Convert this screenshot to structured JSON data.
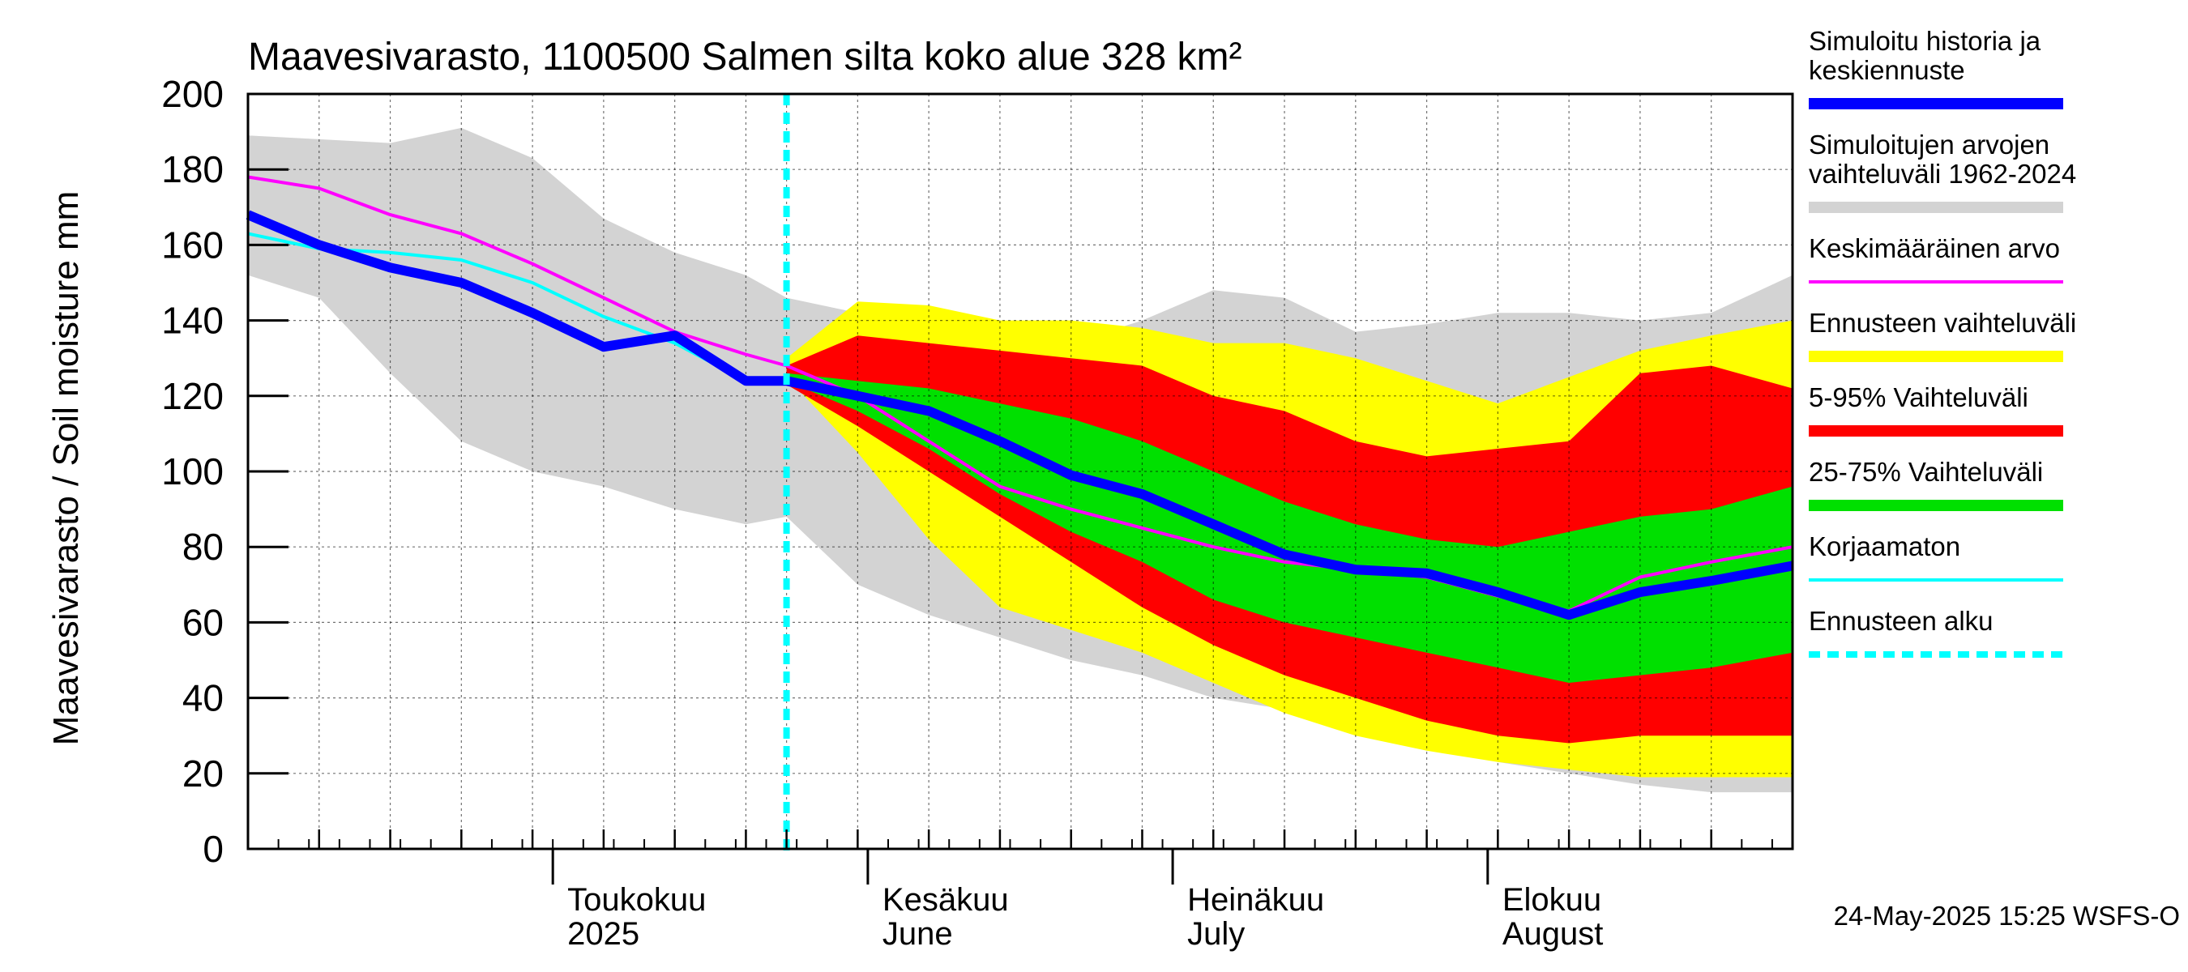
{
  "chart_data": {
    "type": "area",
    "title": "Maavesivarasto, 1100500 Salmen silta koko alue 328 km²",
    "ylabel": "Maavesivarasto / Soil moisture   mm",
    "ylim": [
      0,
      200
    ],
    "yticks": [
      0,
      20,
      40,
      60,
      80,
      100,
      120,
      140,
      160,
      180,
      200
    ],
    "xlim": [
      "2025-04-01",
      "2025-08-31"
    ],
    "x_dates": [
      "2025-04-01",
      "2025-04-08",
      "2025-04-15",
      "2025-04-22",
      "2025-04-29",
      "2025-05-06",
      "2025-05-13",
      "2025-05-20",
      "2025-05-24",
      "2025-05-31",
      "2025-06-07",
      "2025-06-14",
      "2025-06-21",
      "2025-06-28",
      "2025-07-05",
      "2025-07-12",
      "2025-07-19",
      "2025-07-26",
      "2025-08-02",
      "2025-08-09",
      "2025-08-16",
      "2025-08-23",
      "2025-08-31"
    ],
    "month_labels": [
      {
        "fi": "Toukokuu",
        "en": "2025",
        "date": "2025-05-01"
      },
      {
        "fi": "Kesäkuu",
        "en": "June",
        "date": "2025-06-01"
      },
      {
        "fi": "Heinäkuu",
        "en": "July",
        "date": "2025-07-01"
      },
      {
        "fi": "Elokuu",
        "en": "August",
        "date": "2025-08-01"
      }
    ],
    "forecast_start": "2025-05-24",
    "series": [
      {
        "name": "Simuloitujen arvojen vaihteluväli 1962-2024",
        "kind": "band",
        "color": "#d3d3d3",
        "x": [
          "2025-04-01",
          "2025-04-08",
          "2025-04-15",
          "2025-04-22",
          "2025-04-29",
          "2025-05-06",
          "2025-05-13",
          "2025-05-20",
          "2025-05-24",
          "2025-05-31",
          "2025-06-07",
          "2025-06-14",
          "2025-06-21",
          "2025-06-28",
          "2025-07-05",
          "2025-07-12",
          "2025-07-19",
          "2025-07-26",
          "2025-08-02",
          "2025-08-09",
          "2025-08-16",
          "2025-08-23",
          "2025-08-31"
        ],
        "upper": [
          189,
          188,
          187,
          191,
          183,
          167,
          158,
          152,
          146,
          142,
          142,
          138,
          134,
          140,
          148,
          146,
          137,
          139,
          142,
          142,
          140,
          142,
          152
        ],
        "lower": [
          152,
          146,
          126,
          108,
          100,
          96,
          90,
          86,
          88,
          70,
          62,
          56,
          50,
          46,
          40,
          37,
          32,
          27,
          23,
          20,
          17,
          15,
          15
        ]
      },
      {
        "name": "Ennusteen vaihteluväli",
        "kind": "band",
        "color": "#ffff00",
        "x": [
          "2025-05-24",
          "2025-05-31",
          "2025-06-07",
          "2025-06-14",
          "2025-06-21",
          "2025-06-28",
          "2025-07-05",
          "2025-07-12",
          "2025-07-19",
          "2025-07-26",
          "2025-08-02",
          "2025-08-09",
          "2025-08-16",
          "2025-08-23",
          "2025-08-31"
        ],
        "upper": [
          130,
          145,
          144,
          140,
          140,
          138,
          134,
          134,
          130,
          124,
          118,
          125,
          132,
          136,
          140
        ],
        "lower": [
          125,
          105,
          82,
          64,
          58,
          52,
          44,
          36,
          30,
          26,
          23,
          21,
          19,
          19,
          19
        ]
      },
      {
        "name": "5-95% Vaihteluväli",
        "kind": "band",
        "color": "#ff0000",
        "x": [
          "2025-05-24",
          "2025-05-31",
          "2025-06-07",
          "2025-06-14",
          "2025-06-21",
          "2025-06-28",
          "2025-07-05",
          "2025-07-12",
          "2025-07-19",
          "2025-07-26",
          "2025-08-02",
          "2025-08-09",
          "2025-08-16",
          "2025-08-23",
          "2025-08-31"
        ],
        "upper": [
          128,
          136,
          134,
          132,
          130,
          128,
          120,
          116,
          108,
          104,
          106,
          108,
          126,
          128,
          122
        ],
        "lower": [
          123,
          112,
          100,
          88,
          76,
          64,
          54,
          46,
          40,
          34,
          30,
          28,
          30,
          30,
          30
        ]
      },
      {
        "name": "25-75% Vaihteluväli",
        "kind": "band",
        "color": "#00e000",
        "x": [
          "2025-05-24",
          "2025-05-31",
          "2025-06-07",
          "2025-06-14",
          "2025-06-21",
          "2025-06-28",
          "2025-07-05",
          "2025-07-12",
          "2025-07-19",
          "2025-07-26",
          "2025-08-02",
          "2025-08-09",
          "2025-08-16",
          "2025-08-23",
          "2025-08-31"
        ],
        "upper": [
          126,
          124,
          122,
          118,
          114,
          108,
          100,
          92,
          86,
          82,
          80,
          84,
          88,
          90,
          96
        ],
        "lower": [
          124,
          116,
          106,
          94,
          84,
          76,
          66,
          60,
          56,
          52,
          48,
          44,
          46,
          48,
          52
        ]
      },
      {
        "name": "Keskimääräinen arvo",
        "kind": "line",
        "color": "#ff00ff",
        "x": [
          "2025-04-01",
          "2025-04-08",
          "2025-04-15",
          "2025-04-22",
          "2025-04-29",
          "2025-05-06",
          "2025-05-13",
          "2025-05-20",
          "2025-05-24",
          "2025-05-31",
          "2025-06-07",
          "2025-06-14",
          "2025-06-21",
          "2025-06-28",
          "2025-07-05",
          "2025-07-12",
          "2025-07-19",
          "2025-07-26",
          "2025-08-02",
          "2025-08-09",
          "2025-08-16",
          "2025-08-23",
          "2025-08-31"
        ],
        "values": [
          178,
          175,
          168,
          163,
          155,
          146,
          137,
          131,
          128,
          120,
          108,
          96,
          90,
          85,
          80,
          76,
          74,
          72,
          67,
          63,
          72,
          76,
          80
        ]
      },
      {
        "name": "Korjaamaton",
        "kind": "line",
        "color": "#00ffff",
        "x": [
          "2025-04-01",
          "2025-04-08",
          "2025-04-15",
          "2025-04-22",
          "2025-04-29",
          "2025-05-06",
          "2025-05-13",
          "2025-05-20",
          "2025-05-24"
        ],
        "values": [
          163,
          159,
          158,
          156,
          150,
          141,
          134,
          124,
          124
        ]
      },
      {
        "name": "Simuloitu historia ja keskiennuste",
        "kind": "line",
        "color": "#0000ff",
        "x": [
          "2025-04-01",
          "2025-04-08",
          "2025-04-15",
          "2025-04-22",
          "2025-04-29",
          "2025-05-06",
          "2025-05-13",
          "2025-05-20",
          "2025-05-24",
          "2025-05-31",
          "2025-06-07",
          "2025-06-14",
          "2025-06-21",
          "2025-06-28",
          "2025-07-05",
          "2025-07-12",
          "2025-07-19",
          "2025-07-26",
          "2025-08-02",
          "2025-08-09",
          "2025-08-16",
          "2025-08-23",
          "2025-08-31"
        ],
        "values": [
          168,
          160,
          154,
          150,
          142,
          133,
          136,
          124,
          124,
          120,
          116,
          108,
          99,
          94,
          86,
          78,
          74,
          73,
          68,
          62,
          68,
          71,
          75
        ]
      }
    ],
    "legend": [
      {
        "label": "Simuloitu historia ja keskiennuste",
        "color": "#0000ff",
        "style": "thick"
      },
      {
        "label": "Simuloitujen arvojen vaihteluväli 1962-2024",
        "color": "#d3d3d3",
        "style": "thick"
      },
      {
        "label": "Keskimääräinen arvo",
        "color": "#ff00ff",
        "style": "thin"
      },
      {
        "label": "Ennusteen vaihteluväli",
        "color": "#ffff00",
        "style": "thick"
      },
      {
        "label": "5-95% Vaihteluväli",
        "color": "#ff0000",
        "style": "thick"
      },
      {
        "label": "25-75% Vaihteluväli",
        "color": "#00e000",
        "style": "thick"
      },
      {
        "label": "Korjaamaton",
        "color": "#00ffff",
        "style": "thin"
      },
      {
        "label": "Ennusteen alku",
        "color": "#00ffff",
        "style": "dashed"
      }
    ],
    "legend_placement": "right",
    "grid": true,
    "timestamp": "24-May-2025 15:25 WSFS-O"
  }
}
